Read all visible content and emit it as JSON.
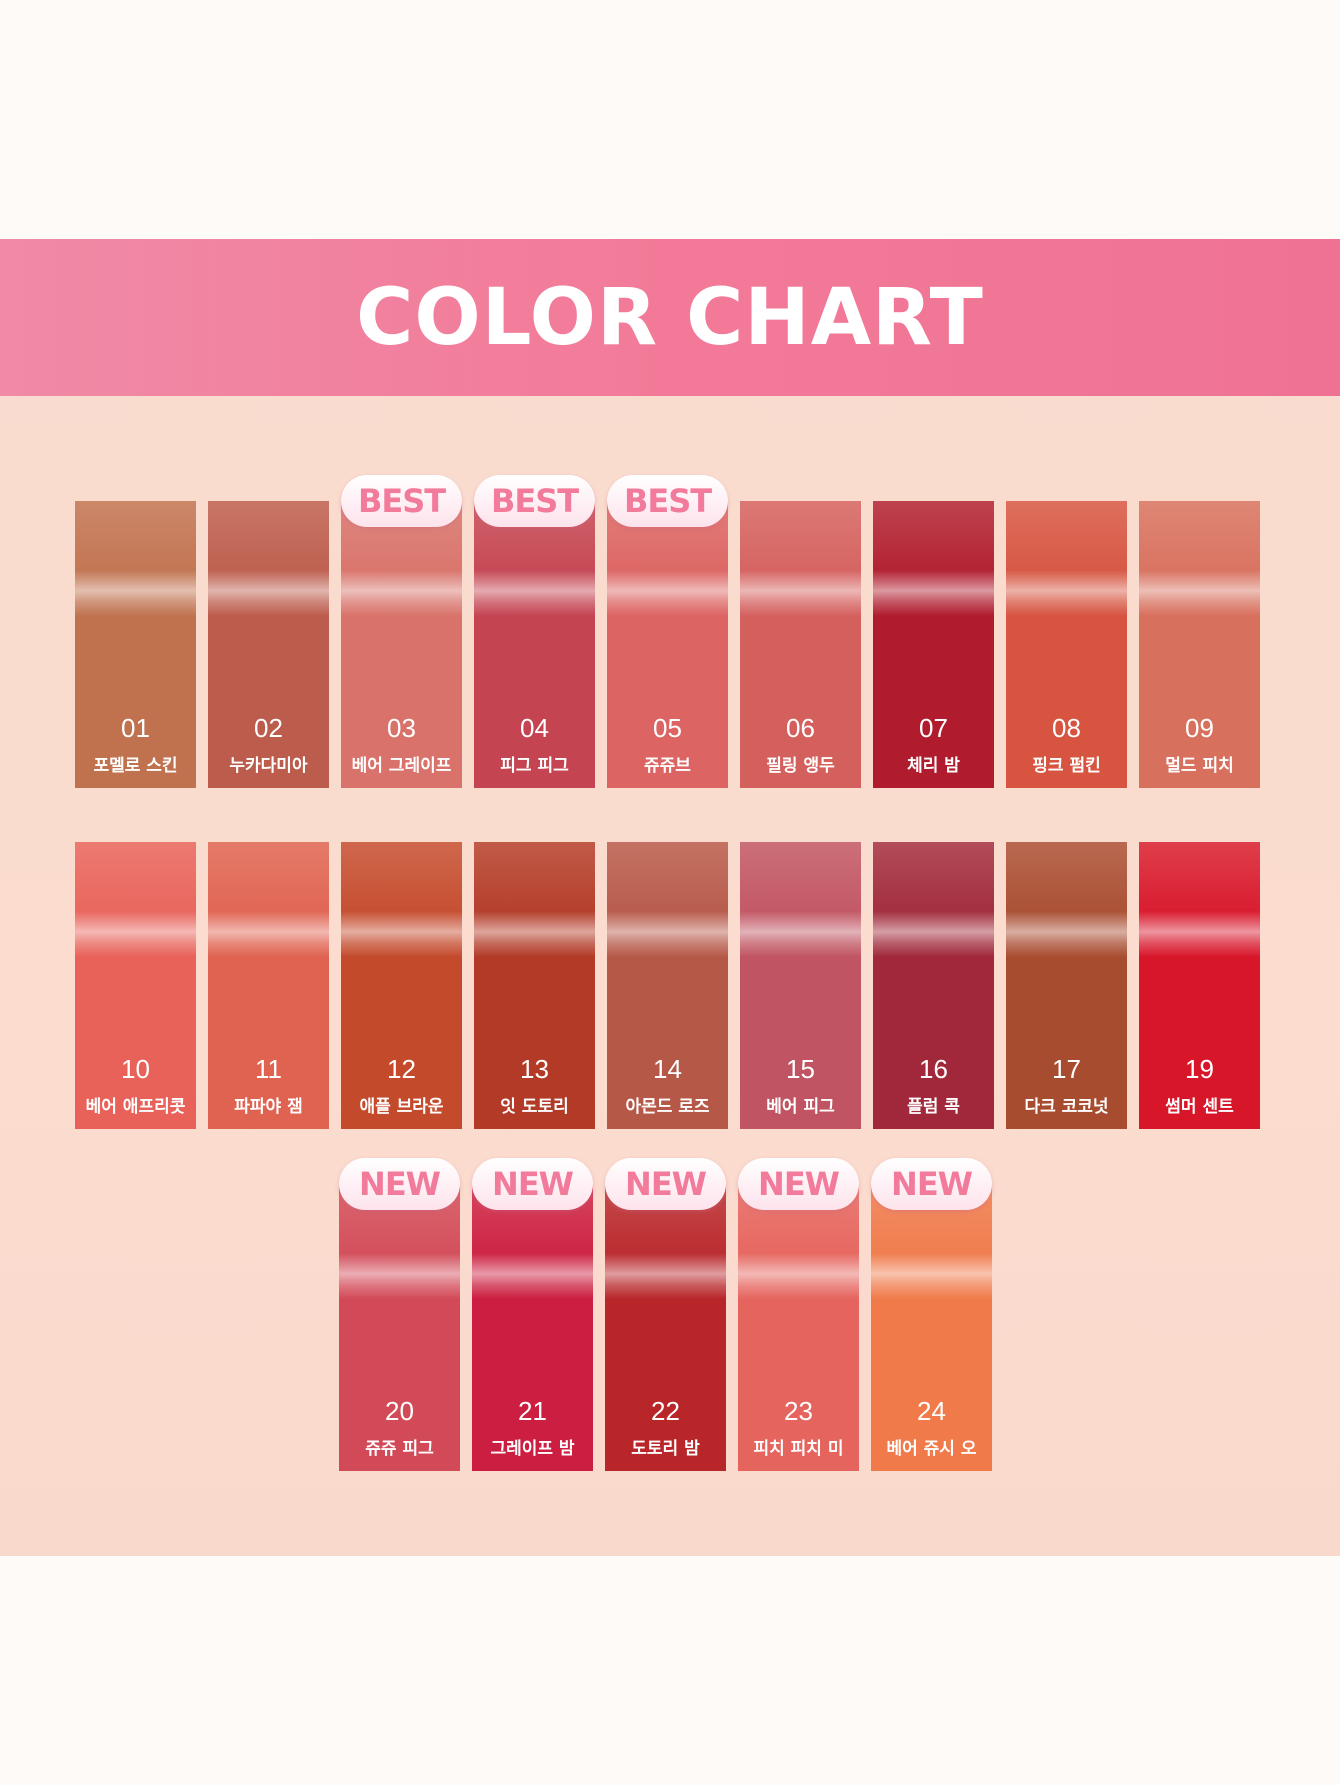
{
  "title": "COLOR CHART",
  "rows": [
    [
      {
        "num": "01",
        "name": "포멜로 스킨",
        "color": "#c0724f",
        "badge": ""
      },
      {
        "num": "02",
        "name": "누카다미아",
        "color": "#bc5c4c",
        "badge": ""
      },
      {
        "num": "03",
        "name": "베어 그레이프",
        "color": "#d8726a",
        "badge": "BEST"
      },
      {
        "num": "04",
        "name": "피그 피그",
        "color": "#c44452",
        "badge": "BEST"
      },
      {
        "num": "05",
        "name": "쥬쥬브",
        "color": "#dc6462",
        "badge": "BEST"
      },
      {
        "num": "06",
        "name": "필링 앵두",
        "color": "#d4605e",
        "badge": ""
      },
      {
        "num": "07",
        "name": "체리 밤",
        "color": "#b01c2e",
        "badge": ""
      },
      {
        "num": "08",
        "name": "핑크 펌킨",
        "color": "#d65440",
        "badge": ""
      },
      {
        "num": "09",
        "name": "멀드 피치",
        "color": "#d8705e",
        "badge": ""
      }
    ],
    [
      {
        "num": "10",
        "name": "베어 애프리콧",
        "color": "#e8625a",
        "badge": ""
      },
      {
        "num": "11",
        "name": "파파야 잼",
        "color": "#e06250",
        "badge": ""
      },
      {
        "num": "12",
        "name": "애플 브라운",
        "color": "#c44a2c",
        "badge": ""
      },
      {
        "num": "13",
        "name": "잇 도토리",
        "color": "#b23a26",
        "badge": ""
      },
      {
        "num": "14",
        "name": "아몬드 로즈",
        "color": "#b65848",
        "badge": ""
      },
      {
        "num": "15",
        "name": "베어 피그",
        "color": "#c05462",
        "badge": ""
      },
      {
        "num": "16",
        "name": "플럼 콕",
        "color": "#a0283a",
        "badge": ""
      },
      {
        "num": "17",
        "name": "다크 코코넛",
        "color": "#a84c30",
        "badge": ""
      },
      {
        "num": "19",
        "name": "썸머 센트",
        "color": "#d8162a",
        "badge": ""
      }
    ],
    [
      {
        "num": "20",
        "name": "쥬쥬 피그",
        "color": "#d24a58",
        "badge": "NEW"
      },
      {
        "num": "21",
        "name": "그레이프 밤",
        "color": "#cc1e40",
        "badge": "NEW"
      },
      {
        "num": "22",
        "name": "도토리 밤",
        "color": "#b8262a",
        "badge": "NEW"
      },
      {
        "num": "23",
        "name": "피치 피치 미",
        "color": "#e6645e",
        "badge": "NEW"
      },
      {
        "num": "24",
        "name": "베어 쥬시 오",
        "color": "#f07a4a",
        "badge": "NEW"
      }
    ]
  ]
}
